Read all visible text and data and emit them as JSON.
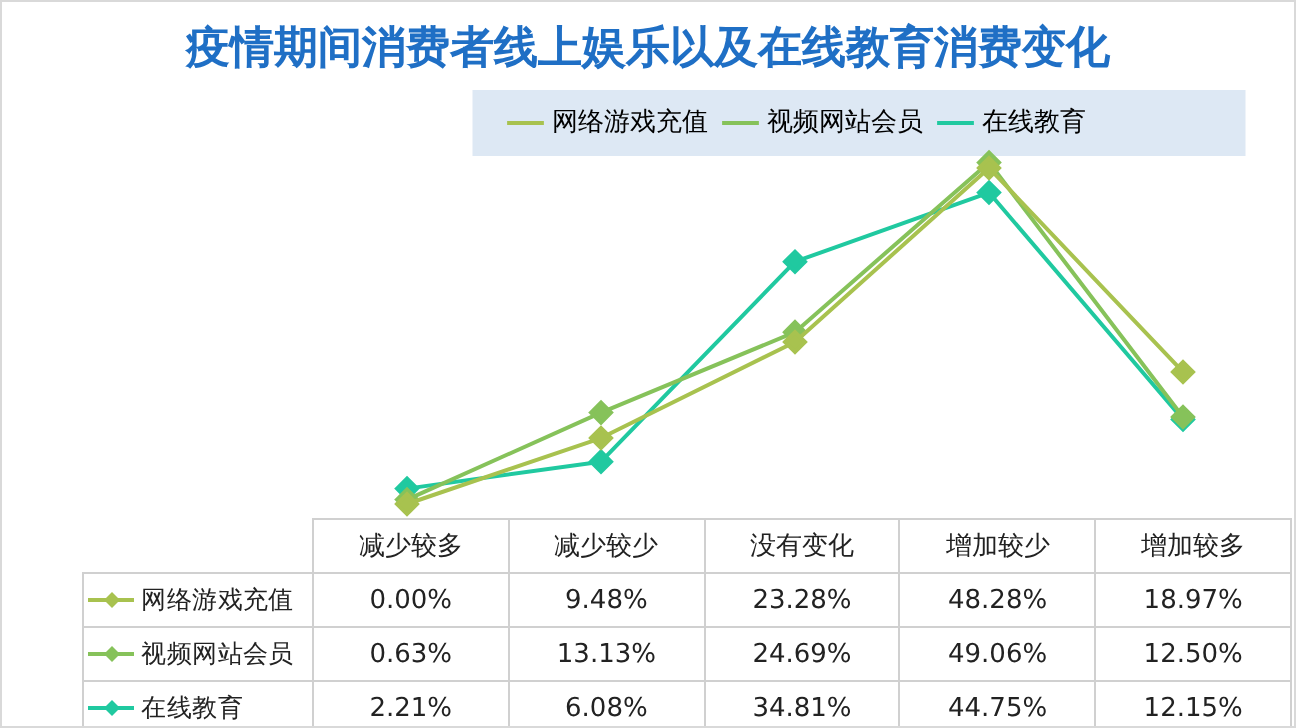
{
  "chart_data": {
    "type": "line",
    "title": "疫情期间消费者线上娱乐以及在线教育消费变化",
    "categories": [
      "减少较多",
      "减少较少",
      "没有变化",
      "增加较少",
      "增加较多"
    ],
    "marker": "diamond",
    "line_style": "solid",
    "legend": "top",
    "grid": false,
    "tick_labels": "x",
    "data_labels": true,
    "series": [
      {
        "name": "网络游戏充值",
        "color": "#a8c24f",
        "values": [
          0,
          9.48,
          23.28,
          48.28,
          18.97
        ],
        "value_labels": [
          "0.00%",
          "9.48%",
          "23.28%",
          "48.28%",
          "18.97%"
        ]
      },
      {
        "name": "视频网站会员",
        "color": "#86c25a",
        "values": [
          0.63,
          13.13,
          24.69,
          49.06,
          12.5
        ],
        "value_labels": [
          "0.63%",
          "13.13%",
          "24.69%",
          "49.06%",
          "12.50%"
        ]
      },
      {
        "name": "在线教育",
        "color": "#20c9a0",
        "values": [
          2.21,
          6.08,
          34.81,
          44.75,
          12.15
        ],
        "value_labels": [
          "2.21%",
          "6.08%",
          "34.81%",
          "44.75%",
          "12.15%"
        ]
      }
    ]
  }
}
